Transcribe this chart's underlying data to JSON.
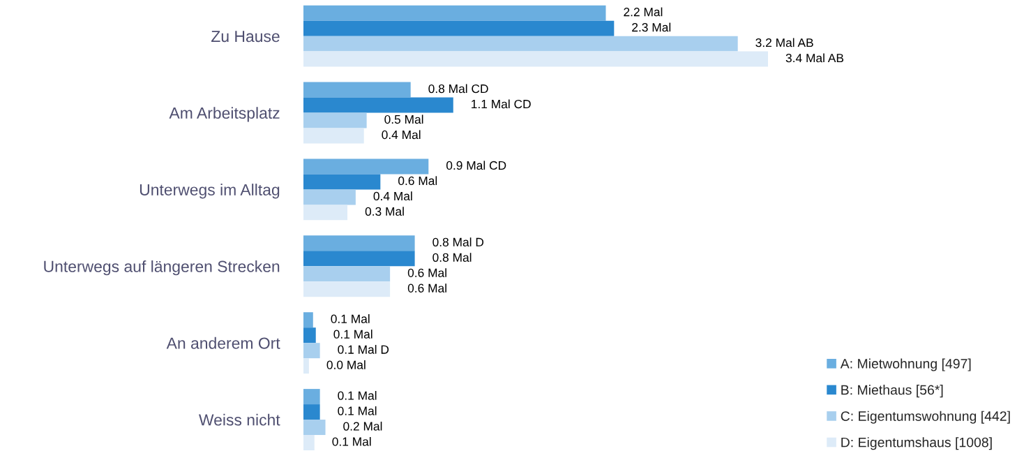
{
  "chart_data": {
    "type": "bar",
    "orientation": "horizontal",
    "legend": "bottom right",
    "categories": [
      "Zu Hause",
      "Am Arbeitsplatz",
      "Unterwegs im Alltag",
      "Unterwegs auf längeren Strecken",
      "An anderem Ort",
      "Weiss nicht"
    ],
    "series": [
      {
        "name": "A: Mietwohnung [497]",
        "color": "#6aaee0",
        "values": [
          2.2,
          0.78,
          0.91,
          0.81,
          0.07,
          0.12
        ],
        "value_labels": [
          "2.2 Mal",
          "0.8 Mal CD",
          "0.9 Mal CD",
          "0.8 Mal D",
          "0.1 Mal",
          "0.1 Mal"
        ]
      },
      {
        "name": "B: Miethaus [56*]",
        "color": "#2a88cf",
        "values": [
          2.26,
          1.09,
          0.56,
          0.81,
          0.09,
          0.12
        ],
        "value_labels": [
          "2.3 Mal",
          "1.1 Mal CD",
          "0.6 Mal",
          "0.8 Mal",
          "0.1 Mal",
          "0.1 Mal"
        ]
      },
      {
        "name": "C: Eigentumswohnung [442]",
        "color": "#a8cfee",
        "values": [
          3.16,
          0.46,
          0.38,
          0.63,
          0.12,
          0.16
        ],
        "value_labels": [
          "3.2 Mal AB",
          "0.5 Mal",
          "0.4 Mal",
          "0.6 Mal",
          "0.1 Mal D",
          "0.2 Mal"
        ]
      },
      {
        "name": "D: Eigentumshaus [1008]",
        "color": "#ddebf8",
        "values": [
          3.38,
          0.44,
          0.32,
          0.63,
          0.04,
          0.08
        ],
        "value_labels": [
          "3.4 Mal AB",
          "0.4 Mal",
          "0.3 Mal",
          "0.6 Mal",
          "0.0 Mal",
          "0.1 Mal"
        ]
      }
    ]
  }
}
